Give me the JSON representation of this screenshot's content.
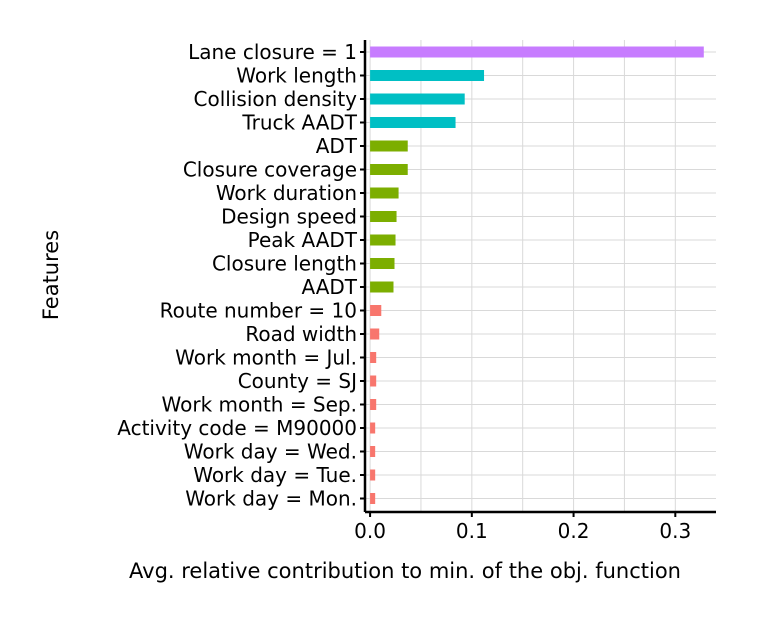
{
  "chart_data": {
    "type": "bar",
    "orientation": "horizontal",
    "xlabel": "Avg. relative contribution to min. of the obj. function",
    "ylabel": "Features",
    "xlim": [
      -0.005,
      0.34
    ],
    "xticks": [
      0.0,
      0.1,
      0.2,
      0.3
    ],
    "xtick_labels": [
      "0.0",
      "0.1",
      "0.2",
      "0.3"
    ],
    "grid": true,
    "legend": "none",
    "categories": [
      "Lane closure = 1",
      "Work length",
      "Collision density",
      "Truck AADT",
      "ADT",
      "Closure coverage",
      "Work duration",
      "Design speed",
      "Peak AADT",
      "Closure length",
      "AADT",
      "Route number = 10",
      "Road width",
      "Work month = Jul.",
      "County = SJ",
      "Work month = Sep.",
      "Activity code = M90000",
      "Work day = Wed.",
      "Work day = Tue.",
      "Work day = Mon."
    ],
    "values": [
      0.328,
      0.112,
      0.093,
      0.084,
      0.037,
      0.037,
      0.028,
      0.026,
      0.025,
      0.024,
      0.023,
      0.011,
      0.009,
      0.006,
      0.006,
      0.006,
      0.005,
      0.005,
      0.005,
      0.005
    ],
    "colors": [
      "#c77cff",
      "#00bfc4",
      "#00bfc4",
      "#00bfc4",
      "#7cae00",
      "#7cae00",
      "#7cae00",
      "#7cae00",
      "#7cae00",
      "#7cae00",
      "#7cae00",
      "#f8766d",
      "#f8766d",
      "#f8766d",
      "#f8766d",
      "#f8766d",
      "#f8766d",
      "#f8766d",
      "#f8766d",
      "#f8766d"
    ],
    "grid_color": "#d9d9d9"
  }
}
